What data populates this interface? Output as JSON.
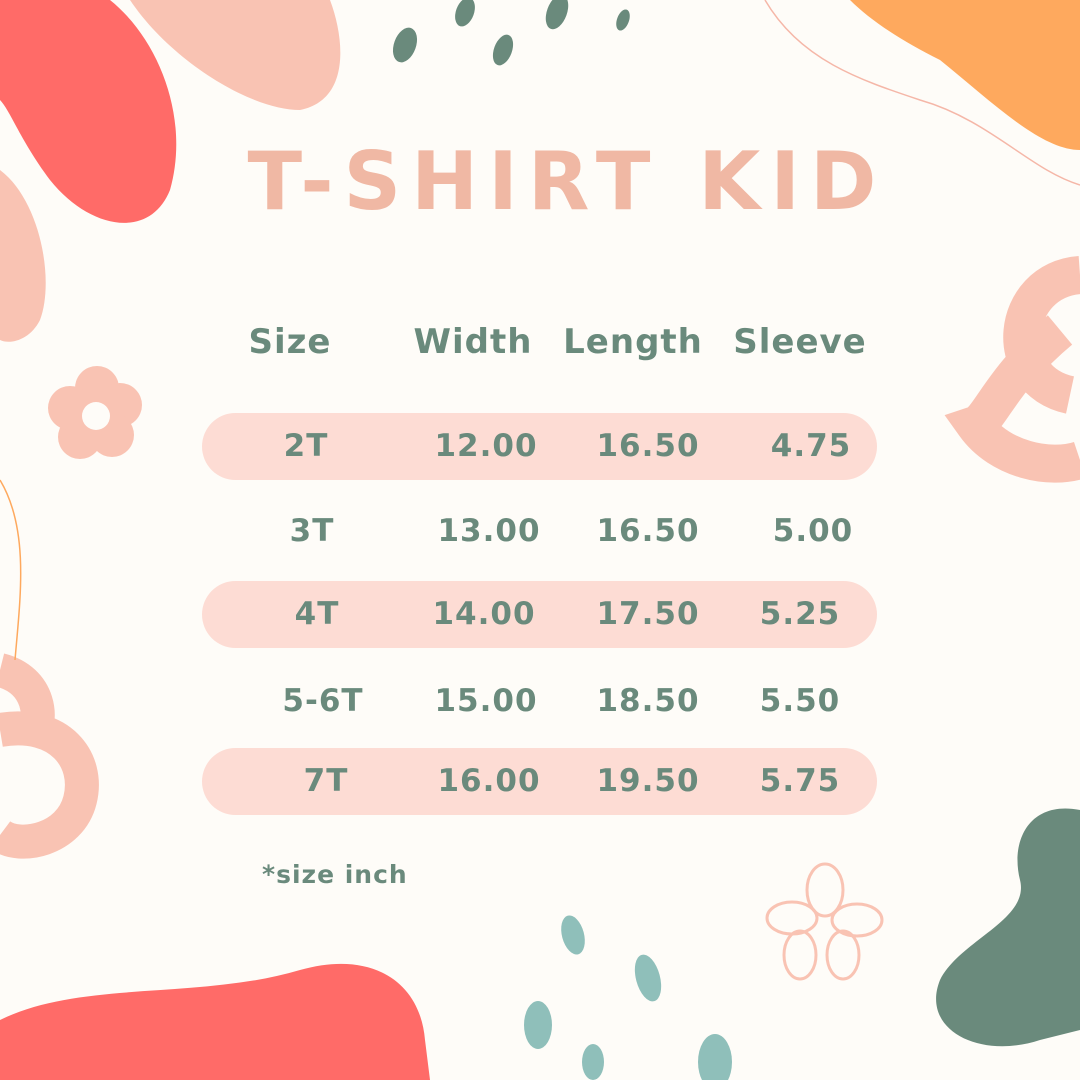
{
  "title": "T-SHIRT KID",
  "colors": {
    "title": "#f0b8a4",
    "ink": "#6a8a7c",
    "stripe": "#fddcd4",
    "coral": "#ff6b68",
    "peach": "#f9c3b3",
    "orange": "#fea95e",
    "green": "#6a8a7c",
    "teal": "#8fbfba"
  },
  "table": {
    "headers": [
      "Size",
      "Width",
      "Length",
      "Sleeve"
    ],
    "rows": [
      [
        "2T",
        "12.00",
        "16.50",
        "4.75"
      ],
      [
        "3T",
        "13.00",
        "16.50",
        "5.00"
      ],
      [
        "4T",
        "14.00",
        "17.50",
        "5.25"
      ],
      [
        "5-6T",
        "15.00",
        "18.50",
        "5.50"
      ],
      [
        "7T",
        "16.00",
        "19.50",
        "5.75"
      ]
    ]
  },
  "note": "*size inch"
}
